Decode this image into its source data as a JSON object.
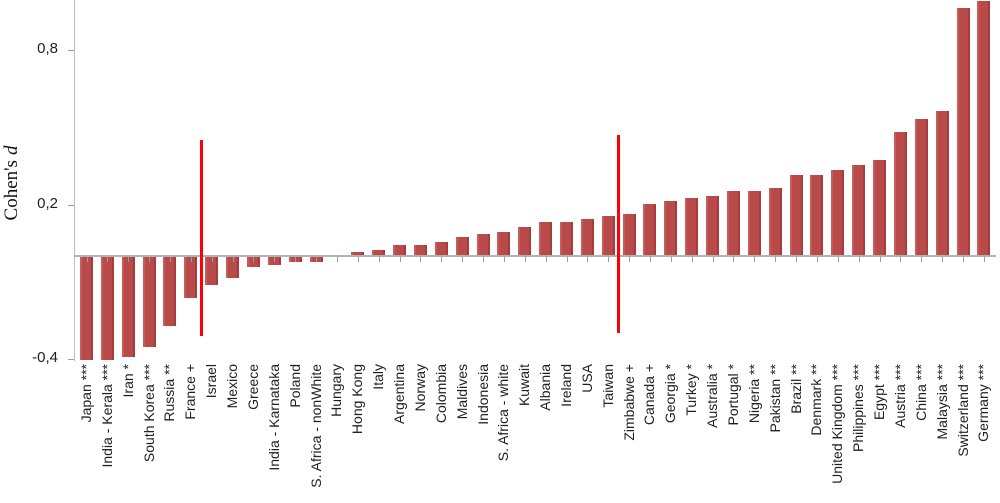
{
  "chart_data": {
    "type": "bar",
    "title": "",
    "xlabel": "",
    "ylabel_regular": "Cohen's",
    "ylabel_italic": "d",
    "ylim": [
      -0.44,
      1.0
    ],
    "grid": false,
    "legend": "none",
    "bar_color": "#b84b49",
    "axis_color": "#b3b3b3",
    "reference_line_color": "#fb0006",
    "yticks": [
      {
        "label": "0,8",
        "value": 0.8
      },
      {
        "label": "0,2",
        "value": 0.2
      },
      {
        "label": "-0,4",
        "value": -0.4
      }
    ],
    "categories": [
      "Japan ***",
      "India - Kerala ***",
      "Iran *",
      "South Korea ***",
      "Russia **",
      "France +",
      "Israel",
      "Mexico",
      "Greece",
      "India - Karnataka",
      "Poland",
      "S. Africa - nonWhite",
      "Hungary",
      "Hong Kong",
      "Italy",
      "Argentina",
      "Norway",
      "Colombia",
      "Maldives",
      "Indonesia",
      "S. Africa - white",
      "Kuwait",
      "Albania",
      "Ireland",
      "USA",
      "Taiwan",
      "Zimbabwe +",
      "Canada +",
      "Georgia *",
      "Turkey *",
      "Australia *",
      "Portugal *",
      "Nigeria **",
      "Pakistan **",
      "Brazil **",
      "Denmark **",
      "United Kingdom ***",
      "Philippines ***",
      "Egypt ***",
      "Austria ***",
      "China ***",
      "Malaysia ***",
      "Switzerland ***",
      "Germany ***"
    ],
    "values": [
      -0.4,
      -0.4,
      -0.39,
      -0.35,
      -0.27,
      -0.16,
      -0.11,
      -0.08,
      -0.04,
      -0.03,
      -0.02,
      -0.02,
      0.0,
      0.01,
      0.02,
      0.04,
      0.04,
      0.05,
      0.07,
      0.08,
      0.09,
      0.11,
      0.13,
      0.13,
      0.14,
      0.15,
      0.16,
      0.2,
      0.21,
      0.22,
      0.23,
      0.25,
      0.25,
      0.26,
      0.31,
      0.31,
      0.33,
      0.35,
      0.37,
      0.48,
      0.53,
      0.56,
      0.96,
      0.99
    ],
    "reference_lines": [
      {
        "between_categories": [
          "France +",
          "Israel"
        ],
        "d_top": 0.45,
        "d_bottom": -0.31
      },
      {
        "between_categories": [
          "Taiwan",
          "Zimbabwe +"
        ],
        "d_top": 0.47,
        "d_bottom": -0.3
      }
    ]
  }
}
